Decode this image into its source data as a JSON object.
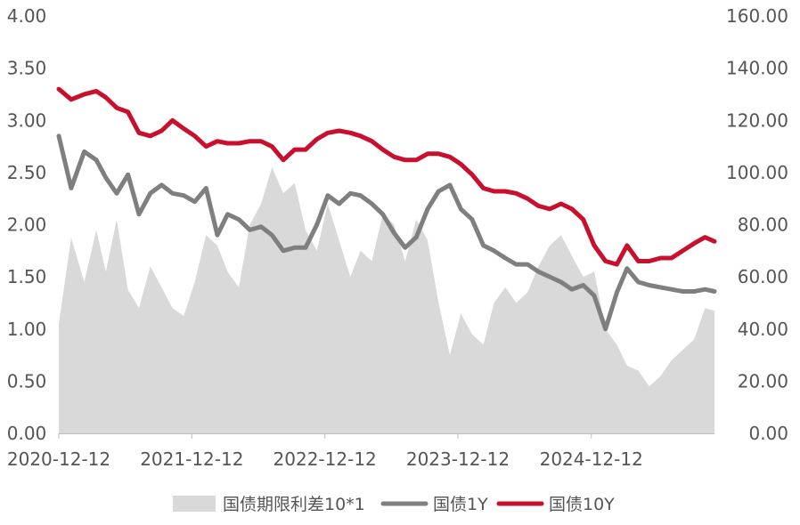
{
  "chart_data": {
    "type": "line",
    "x_ticks": [
      "2020-12-12",
      "2021-12-12",
      "2022-12-12",
      "2023-12-12",
      "2024-12-12"
    ],
    "x_range": [
      "2020-12-12",
      "2025-11-15"
    ],
    "y_left_range": [
      0,
      4
    ],
    "y_left_ticks": [
      "0.00",
      "0.50",
      "1.00",
      "1.50",
      "2.00",
      "2.50",
      "3.00",
      "3.50",
      "4.00"
    ],
    "y_right_range": [
      0,
      160
    ],
    "y_right_ticks": [
      "0.00",
      "20.00",
      "40.00",
      "60.00",
      "80.00",
      "100.00",
      "120.00",
      "140.00",
      "160.00"
    ],
    "grid": false,
    "legend_position": "bottom",
    "series": [
      {
        "name": "国债期限利差10*1",
        "type": "area",
        "axis": "right",
        "color": "#d9d9d9",
        "x": [
          "2020-12-12",
          "2021-01-15",
          "2021-02-20",
          "2021-03-25",
          "2021-04-20",
          "2021-05-20",
          "2021-06-20",
          "2021-07-20",
          "2021-08-20",
          "2021-09-20",
          "2021-10-20",
          "2021-11-20",
          "2021-12-20",
          "2022-01-20",
          "2022-02-20",
          "2022-03-20",
          "2022-04-20",
          "2022-05-20",
          "2022-06-20",
          "2022-07-20",
          "2022-08-20",
          "2022-09-20",
          "2022-10-20",
          "2022-11-20",
          "2022-12-20",
          "2023-01-20",
          "2023-02-20",
          "2023-03-20",
          "2023-04-20",
          "2023-05-20",
          "2023-06-20",
          "2023-07-20",
          "2023-08-20",
          "2023-09-20",
          "2023-10-20",
          "2023-11-20",
          "2023-12-20",
          "2024-01-20",
          "2024-02-20",
          "2024-03-20",
          "2024-04-20",
          "2024-05-20",
          "2024-06-20",
          "2024-07-20",
          "2024-08-20",
          "2024-09-20",
          "2024-10-20",
          "2024-11-20",
          "2024-12-20",
          "2025-01-20",
          "2025-02-20",
          "2025-03-20",
          "2025-04-20",
          "2025-05-20",
          "2025-06-20",
          "2025-07-20",
          "2025-08-20",
          "2025-09-20",
          "2025-10-20",
          "2025-11-15"
        ],
        "values": [
          42,
          75,
          58,
          78,
          62,
          82,
          55,
          48,
          64,
          56,
          48,
          45,
          58,
          76,
          72,
          62,
          56,
          80,
          88,
          102,
          92,
          96,
          78,
          70,
          88,
          74,
          60,
          70,
          66,
          84,
          80,
          66,
          82,
          74,
          50,
          30,
          46,
          38,
          34,
          50,
          56,
          50,
          54,
          64,
          72,
          76,
          68,
          60,
          62,
          40,
          34,
          26,
          24,
          18,
          22,
          28,
          32,
          36,
          48,
          47
        ]
      },
      {
        "name": "国债1Y",
        "type": "line",
        "axis": "left",
        "color": "#7f7f7f",
        "x": [
          "2020-12-12",
          "2021-01-15",
          "2021-02-20",
          "2021-03-25",
          "2021-04-20",
          "2021-05-20",
          "2021-06-20",
          "2021-07-20",
          "2021-08-20",
          "2021-09-20",
          "2021-10-20",
          "2021-11-20",
          "2021-12-20",
          "2022-01-20",
          "2022-02-20",
          "2022-03-20",
          "2022-04-20",
          "2022-05-20",
          "2022-06-20",
          "2022-07-20",
          "2022-08-20",
          "2022-09-20",
          "2022-10-20",
          "2022-11-20",
          "2022-12-20",
          "2023-01-20",
          "2023-02-20",
          "2023-03-20",
          "2023-04-20",
          "2023-05-20",
          "2023-06-20",
          "2023-07-20",
          "2023-08-20",
          "2023-09-20",
          "2023-10-20",
          "2023-11-20",
          "2023-12-20",
          "2024-01-20",
          "2024-02-20",
          "2024-03-20",
          "2024-04-20",
          "2024-05-20",
          "2024-06-20",
          "2024-07-20",
          "2024-08-20",
          "2024-09-20",
          "2024-10-20",
          "2024-11-20",
          "2024-12-20",
          "2025-01-20",
          "2025-02-20",
          "2025-03-20",
          "2025-04-20",
          "2025-05-20",
          "2025-06-20",
          "2025-07-20",
          "2025-08-20",
          "2025-09-20",
          "2025-10-20",
          "2025-11-15"
        ],
        "values": [
          2.85,
          2.35,
          2.7,
          2.62,
          2.45,
          2.3,
          2.48,
          2.1,
          2.3,
          2.38,
          2.3,
          2.28,
          2.22,
          2.35,
          1.9,
          2.1,
          2.05,
          1.95,
          1.98,
          1.9,
          1.75,
          1.78,
          1.78,
          2.0,
          2.28,
          2.2,
          2.3,
          2.28,
          2.2,
          2.1,
          1.92,
          1.78,
          1.88,
          2.15,
          2.32,
          2.38,
          2.15,
          2.05,
          1.8,
          1.75,
          1.68,
          1.62,
          1.62,
          1.55,
          1.5,
          1.45,
          1.38,
          1.42,
          1.32,
          1.0,
          1.35,
          1.58,
          1.45,
          1.42,
          1.4,
          1.38,
          1.36,
          1.36,
          1.38,
          1.36
        ]
      },
      {
        "name": "国债10Y",
        "type": "line",
        "axis": "left",
        "color": "#c8102e",
        "x": [
          "2020-12-12",
          "2021-01-15",
          "2021-02-20",
          "2021-03-25",
          "2021-04-20",
          "2021-05-20",
          "2021-06-20",
          "2021-07-20",
          "2021-08-20",
          "2021-09-20",
          "2021-10-20",
          "2021-11-20",
          "2021-12-20",
          "2022-01-20",
          "2022-02-20",
          "2022-03-20",
          "2022-04-20",
          "2022-05-20",
          "2022-06-20",
          "2022-07-20",
          "2022-08-20",
          "2022-09-20",
          "2022-10-20",
          "2022-11-20",
          "2022-12-20",
          "2023-01-20",
          "2023-02-20",
          "2023-03-20",
          "2023-04-20",
          "2023-05-20",
          "2023-06-20",
          "2023-07-20",
          "2023-08-20",
          "2023-09-20",
          "2023-10-20",
          "2023-11-20",
          "2023-12-20",
          "2024-01-20",
          "2024-02-20",
          "2024-03-20",
          "2024-04-20",
          "2024-05-20",
          "2024-06-20",
          "2024-07-20",
          "2024-08-20",
          "2024-09-20",
          "2024-10-20",
          "2024-11-20",
          "2024-12-20",
          "2025-01-20",
          "2025-02-20",
          "2025-03-20",
          "2025-04-20",
          "2025-05-20",
          "2025-06-20",
          "2025-07-20",
          "2025-08-20",
          "2025-09-20",
          "2025-10-20",
          "2025-11-15"
        ],
        "values": [
          3.3,
          3.2,
          3.25,
          3.28,
          3.22,
          3.12,
          3.08,
          2.88,
          2.85,
          2.9,
          3.0,
          2.92,
          2.85,
          2.75,
          2.8,
          2.78,
          2.78,
          2.8,
          2.8,
          2.75,
          2.62,
          2.72,
          2.72,
          2.82,
          2.88,
          2.9,
          2.88,
          2.85,
          2.8,
          2.72,
          2.65,
          2.62,
          2.62,
          2.68,
          2.68,
          2.65,
          2.58,
          2.48,
          2.35,
          2.32,
          2.32,
          2.3,
          2.25,
          2.18,
          2.15,
          2.2,
          2.15,
          2.05,
          1.8,
          1.65,
          1.62,
          1.8,
          1.65,
          1.65,
          1.68,
          1.68,
          1.75,
          1.82,
          1.88,
          1.84
        ]
      }
    ]
  }
}
